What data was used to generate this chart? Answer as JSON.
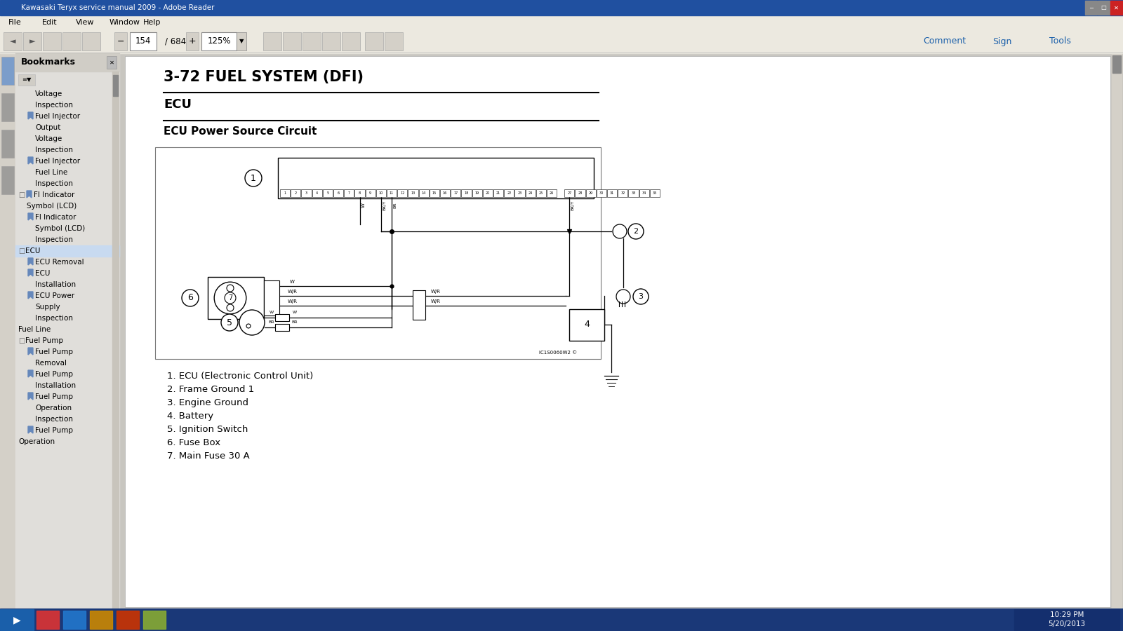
{
  "title_bar": "Kawasaki Teryx service manual 2009 - Adobe Reader",
  "section_title": "3-72 FUEL SYSTEM (DFI)",
  "subsection": "ECU",
  "diagram_title": "ECU Power Source Circuit",
  "legend": [
    "1. ECU (Electronic Control Unit)",
    "2. Frame Ground 1",
    "3. Engine Ground",
    "4. Battery",
    "5. Ignition Switch",
    "6. Fuse Box",
    "7. Main Fuse 30 A"
  ],
  "sidebar_items": [
    [
      2,
      "Voltage",
      false
    ],
    [
      2,
      "Inspection",
      false
    ],
    [
      1,
      "Fuel Injector",
      true
    ],
    [
      2,
      "Output",
      false
    ],
    [
      2,
      "Voltage",
      false
    ],
    [
      2,
      "Inspection",
      false
    ],
    [
      1,
      "Fuel Injector",
      true
    ],
    [
      2,
      "Fuel Line",
      false
    ],
    [
      2,
      "Inspection",
      false
    ],
    [
      0,
      "FI Indicator",
      true
    ],
    [
      1,
      "Symbol (LCD)",
      false
    ],
    [
      1,
      "FI Indicator",
      true
    ],
    [
      2,
      "Symbol (LCD)",
      false
    ],
    [
      2,
      "Inspection",
      false
    ],
    [
      0,
      "ECU",
      false
    ],
    [
      1,
      "ECU Removal",
      true
    ],
    [
      1,
      "ECU",
      true
    ],
    [
      2,
      "Installation",
      false
    ],
    [
      1,
      "ECU Power",
      true
    ],
    [
      2,
      "Supply",
      false
    ],
    [
      2,
      "Inspection",
      false
    ],
    [
      0,
      "Fuel Line",
      false
    ],
    [
      0,
      "Fuel Pump",
      false
    ],
    [
      1,
      "Fuel Pump",
      true
    ],
    [
      2,
      "Removal",
      false
    ],
    [
      1,
      "Fuel Pump",
      true
    ],
    [
      2,
      "Installation",
      false
    ],
    [
      1,
      "Fuel Pump",
      true
    ],
    [
      2,
      "Operation",
      false
    ],
    [
      2,
      "Inspection",
      false
    ],
    [
      1,
      "Fuel Pump",
      true
    ],
    [
      0,
      "Operation",
      false
    ]
  ],
  "bg_color": "#c8c6c0",
  "sidebar_bg": "#e0deda",
  "page_bg": "#ffffff",
  "title_bar_bg": "#2050a0",
  "taskbar_bg": "#1a3878",
  "menu_bar_bg": "#ece9e0"
}
